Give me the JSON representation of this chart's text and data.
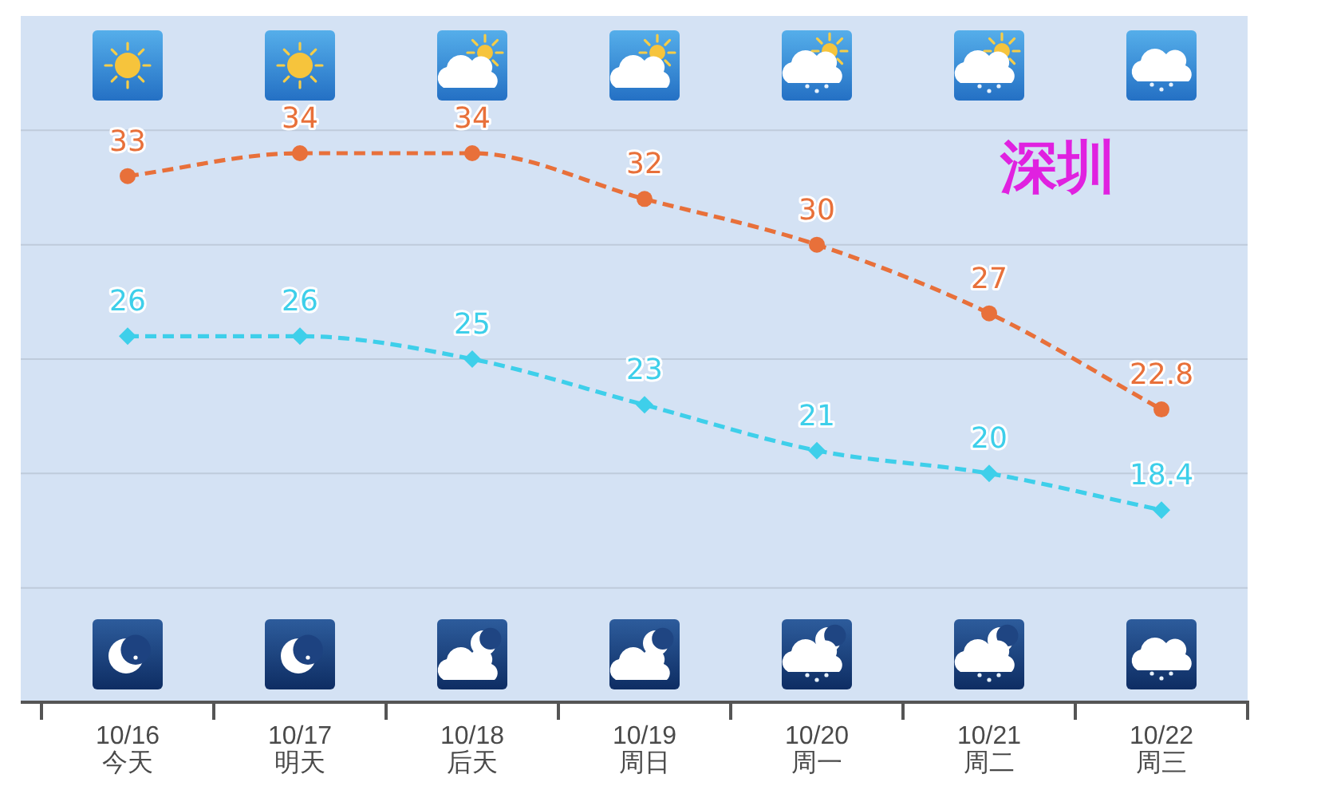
{
  "chart_data": {
    "type": "line",
    "title": "深圳",
    "categories": [
      "10/16\n今天",
      "10/17\n明天",
      "10/18\n后天",
      "10/19\n周日",
      "10/20\n周一",
      "10/21\n周二",
      "10/22\n周三"
    ],
    "series": [
      {
        "color": "#e8703a",
        "marker": "circle",
        "values": [
          33,
          34,
          34,
          32,
          30,
          27,
          22.8
        ]
      },
      {
        "color": "#3ecfea",
        "marker": "diamond",
        "values": [
          26,
          26,
          25,
          23,
          21,
          20,
          18.4
        ]
      }
    ],
    "ylim": [
      10,
      40
    ],
    "yticks": [
      {
        "value": 15,
        "label": null
      },
      {
        "value": 20,
        "label": null
      },
      {
        "value": 25,
        "label": null
      },
      {
        "value": 30,
        "label": null
      },
      {
        "value": 35,
        "label": null
      }
    ],
    "grid": "y",
    "tick_labels": "x",
    "data_labels": true,
    "line_style": "dashed"
  }
}
